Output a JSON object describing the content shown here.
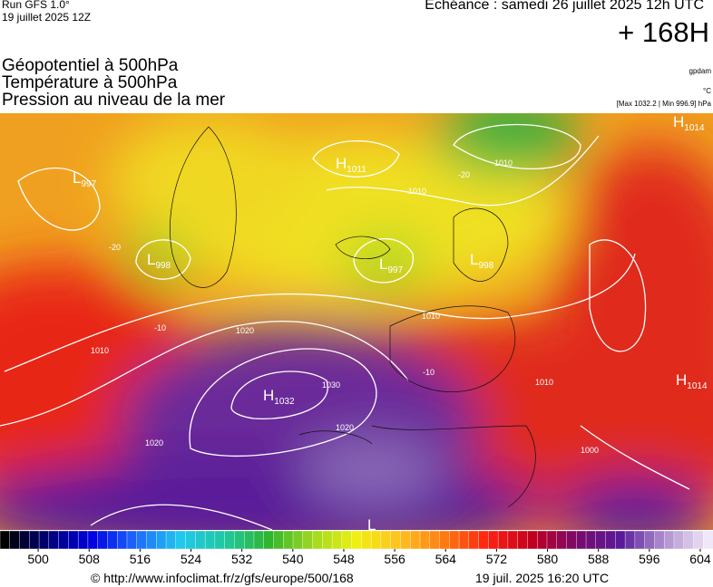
{
  "header": {
    "run": "Run GFS 1.0°",
    "run_date": "19 juillet 2025 12Z",
    "echeance": "Echéance : samedi 26 juillet 2025 12h UTC",
    "lead": "+ 168H",
    "fields": [
      "Géopotentiel à 500hPa",
      "Température à 500hPa",
      "Pression au niveau de la mer"
    ],
    "units": [
      "gpdam",
      "°C"
    ],
    "minmax": "[Max 1032.2 | Min 996.9] hPa"
  },
  "map": {
    "centers": [
      {
        "letter": "H",
        "value": "1014"
      },
      {
        "letter": "H",
        "value": "1011"
      },
      {
        "letter": "L",
        "value": "997"
      },
      {
        "letter": "L",
        "value": "998"
      },
      {
        "letter": "L",
        "value": "997"
      },
      {
        "letter": "L",
        "value": "998"
      },
      {
        "letter": "H",
        "value": "1032"
      },
      {
        "letter": "H",
        "value": "1014"
      },
      {
        "letter": "L",
        "value": ""
      }
    ],
    "contour_labels": [
      "1010",
      "1010",
      "1010",
      "1020",
      "1030",
      "1020",
      "1020",
      "1010",
      "1000",
      "-20",
      "-20",
      "-10",
      "-10",
      "1010"
    ]
  },
  "colorbar": {
    "range": [
      494,
      606
    ],
    "ticks": [
      500,
      508,
      516,
      524,
      532,
      540,
      548,
      556,
      564,
      572,
      580,
      588,
      596,
      604
    ],
    "colors": [
      "#000000",
      "#00007a",
      "#0000e0",
      "#1e6cff",
      "#21c8ee",
      "#1ec9a0",
      "#2fb52f",
      "#a0d820",
      "#f0f010",
      "#ffc020",
      "#ff7a10",
      "#ff2010",
      "#c00020",
      "#7a0a6a",
      "#5a1a9a",
      "#b090d0",
      "#f0e8f8"
    ]
  },
  "footer": {
    "source": "© http://www.infoclimat.fr/z/gfs/europe/500/168",
    "timestamp": "19 juil. 2025 16:20 UTC"
  }
}
